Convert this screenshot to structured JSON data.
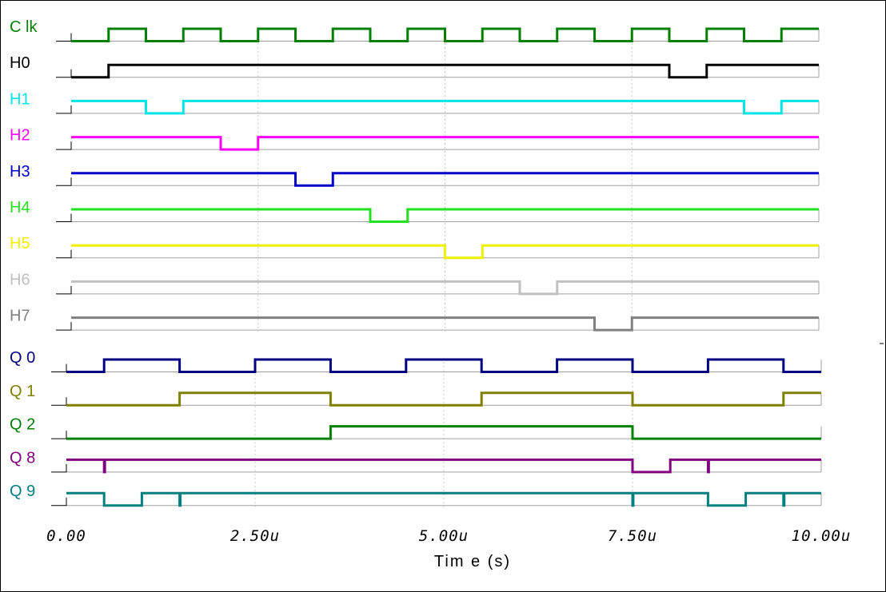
{
  "chart_data": [
    {
      "type": "line",
      "subtype": "digital-timing",
      "xlim": [
        0,
        10
      ],
      "x_unit": "u",
      "grid": true,
      "series": [
        {
          "name": "C lk",
          "color": "#008000",
          "transitions": [
            [
              0,
              0
            ],
            [
              0.5,
              1
            ],
            [
              1.0,
              0
            ],
            [
              1.5,
              1
            ],
            [
              2.0,
              0
            ],
            [
              2.5,
              1
            ],
            [
              3.0,
              0
            ],
            [
              3.5,
              1
            ],
            [
              4.0,
              0
            ],
            [
              4.5,
              1
            ],
            [
              5.0,
              0
            ],
            [
              5.5,
              1
            ],
            [
              6.0,
              0
            ],
            [
              6.5,
              1
            ],
            [
              7.0,
              0
            ],
            [
              7.5,
              1
            ],
            [
              8.0,
              0
            ],
            [
              8.5,
              1
            ],
            [
              9.0,
              0
            ],
            [
              9.5,
              1
            ]
          ]
        },
        {
          "name": "H0",
          "color": "#000000",
          "transitions": [
            [
              0,
              0
            ],
            [
              0.5,
              1
            ],
            [
              8.0,
              0
            ],
            [
              8.5,
              1
            ]
          ]
        },
        {
          "name": "H1",
          "color": "#00e5e5",
          "transitions": [
            [
              0,
              1
            ],
            [
              1.0,
              0
            ],
            [
              1.5,
              1
            ],
            [
              9.0,
              0
            ],
            [
              9.5,
              1
            ]
          ]
        },
        {
          "name": "H2",
          "color": "#ff00ff",
          "transitions": [
            [
              0,
              1
            ],
            [
              2.0,
              0
            ],
            [
              2.5,
              1
            ]
          ]
        },
        {
          "name": "H3",
          "color": "#0000c8",
          "transitions": [
            [
              0,
              1
            ],
            [
              3.0,
              0
            ],
            [
              3.5,
              1
            ]
          ]
        },
        {
          "name": "H4",
          "color": "#22e022",
          "transitions": [
            [
              0,
              1
            ],
            [
              4.0,
              0
            ],
            [
              4.5,
              1
            ]
          ]
        },
        {
          "name": "H5",
          "color": "#f0f000",
          "transitions": [
            [
              0,
              1
            ],
            [
              5.0,
              0
            ],
            [
              5.5,
              1
            ]
          ]
        },
        {
          "name": "H6",
          "color": "#c0c0c0",
          "transitions": [
            [
              0,
              1
            ],
            [
              6.0,
              0
            ],
            [
              6.5,
              1
            ]
          ]
        },
        {
          "name": "H7",
          "color": "#808080",
          "transitions": [
            [
              0,
              1
            ],
            [
              7.0,
              0
            ],
            [
              7.5,
              1
            ]
          ]
        }
      ]
    },
    {
      "type": "line",
      "subtype": "digital-timing",
      "xlim": [
        0,
        10
      ],
      "x_unit": "u",
      "xlabel": "Tim e  (s)",
      "xticks": [
        "0.00",
        "2.50u",
        "5.00u",
        "7.50u",
        "10.00u"
      ],
      "xtick_values": [
        0,
        2.5,
        5.0,
        7.5,
        10.0
      ],
      "grid": true,
      "series": [
        {
          "name": "Q 0",
          "color": "#000080",
          "transitions": [
            [
              0,
              0
            ],
            [
              0.5,
              1
            ],
            [
              1.5,
              0
            ],
            [
              2.5,
              1
            ],
            [
              3.5,
              0
            ],
            [
              4.5,
              1
            ],
            [
              5.5,
              0
            ],
            [
              6.5,
              1
            ],
            [
              7.5,
              0
            ],
            [
              8.5,
              1
            ],
            [
              9.5,
              0
            ]
          ]
        },
        {
          "name": "Q 1",
          "color": "#808000",
          "transitions": [
            [
              0,
              0
            ],
            [
              1.5,
              1
            ],
            [
              3.5,
              0
            ],
            [
              5.5,
              1
            ],
            [
              7.5,
              0
            ],
            [
              9.5,
              1
            ]
          ]
        },
        {
          "name": "Q 2",
          "color": "#008000",
          "transitions": [
            [
              0,
              0
            ],
            [
              3.5,
              1
            ],
            [
              7.5,
              0
            ]
          ]
        },
        {
          "name": "Q 8",
          "color": "#800080",
          "transitions": [
            [
              0,
              1
            ],
            [
              0.5,
              0
            ],
            [
              0.51,
              1
            ],
            [
              7.5,
              0
            ],
            [
              8.0,
              1
            ],
            [
              8.5,
              0
            ],
            [
              8.51,
              1
            ]
          ]
        },
        {
          "name": "Q 9",
          "color": "#008080",
          "transitions": [
            [
              0,
              1
            ],
            [
              0.5,
              0
            ],
            [
              1.0,
              1
            ],
            [
              1.5,
              0
            ],
            [
              1.51,
              1
            ],
            [
              7.5,
              0
            ],
            [
              7.51,
              1
            ],
            [
              8.5,
              0
            ],
            [
              9.0,
              1
            ],
            [
              9.5,
              0
            ],
            [
              9.51,
              1
            ]
          ]
        }
      ]
    }
  ]
}
